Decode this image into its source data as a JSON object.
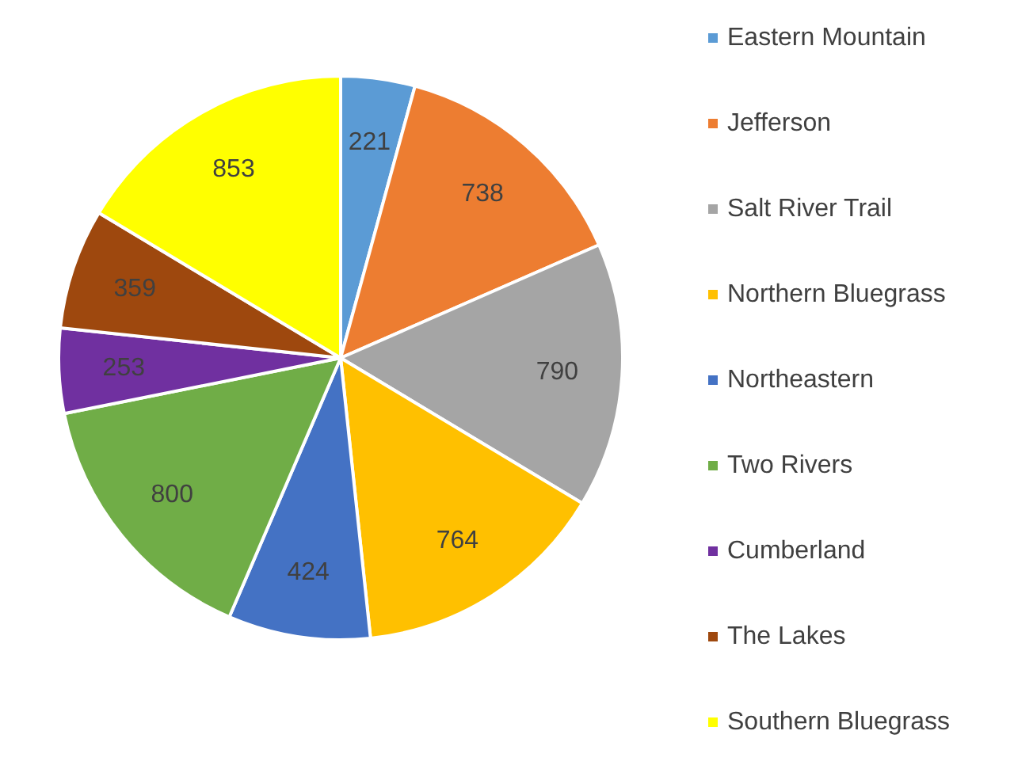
{
  "chart_data": {
    "type": "pie",
    "categories": [
      "Eastern Mountain",
      "Jefferson",
      "Salt River Trail",
      "Northern Bluegrass",
      "Northeastern",
      "Two Rivers",
      "Cumberland",
      "The Lakes",
      "Southern Bluegrass"
    ],
    "values": [
      221,
      738,
      790,
      764,
      424,
      800,
      253,
      359,
      853
    ],
    "colors": [
      "#5b9bd5",
      "#ed7d31",
      "#a5a5a5",
      "#ffc000",
      "#4472c4",
      "#70ad47",
      "#7030a0",
      "#9e480e",
      "#ffff00"
    ],
    "data_labels": true,
    "legend": "right"
  }
}
